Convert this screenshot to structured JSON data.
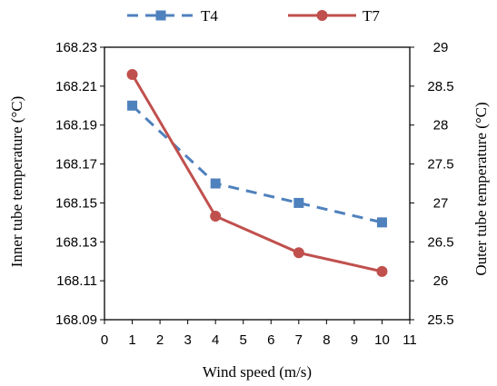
{
  "chart_data": {
    "type": "line",
    "x": [
      1,
      4,
      7,
      10
    ],
    "xlabel": "Wind speed (m/s)",
    "xlim": [
      0,
      11
    ],
    "xticks": [
      0,
      1,
      2,
      3,
      4,
      5,
      6,
      7,
      8,
      9,
      10,
      11
    ],
    "ylabel_left": "Inner tube temperature (°C)",
    "ylim_left": [
      168.09,
      168.23
    ],
    "yticks_left": [
      "168.09",
      "168.11",
      "168.13",
      "168.15",
      "168.17",
      "168.19",
      "168.21",
      "168.23"
    ],
    "ylabel_right": "Outer tube temperature (°C)",
    "ylim_right": [
      25.5,
      29
    ],
    "yticks_right": [
      "25.5",
      "26",
      "26.5",
      "27",
      "27.5",
      "28",
      "28.5",
      "29"
    ],
    "grid": false,
    "legend_position": "top",
    "series": [
      {
        "name": "T4",
        "axis": "left",
        "values": [
          168.2,
          168.16,
          168.15,
          168.14
        ],
        "color": "#4F81BD",
        "line_style": "dashed",
        "marker": "square"
      },
      {
        "name": "T7",
        "axis": "right",
        "values": [
          28.65,
          26.83,
          26.36,
          26.12
        ],
        "color": "#C0504D",
        "line_style": "solid",
        "marker": "circle"
      }
    ]
  }
}
